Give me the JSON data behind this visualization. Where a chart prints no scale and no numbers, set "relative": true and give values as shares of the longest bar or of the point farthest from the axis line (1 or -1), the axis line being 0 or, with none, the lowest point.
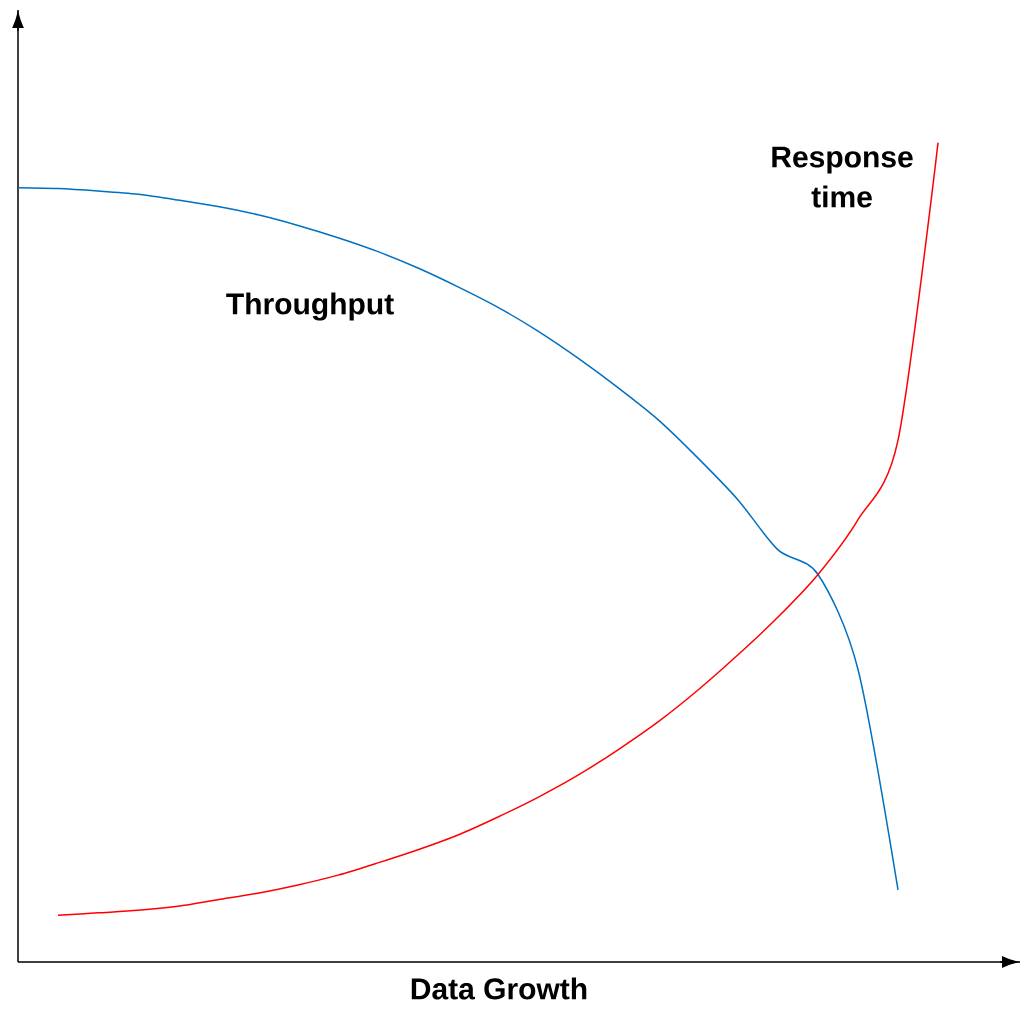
{
  "chart_data": {
    "type": "line",
    "relative": true,
    "xlabel": "Data Growth",
    "marker": "none",
    "categories": [
      null,
      null,
      null,
      null,
      null,
      null,
      null,
      null,
      null,
      null,
      null,
      null,
      null,
      null,
      null,
      null,
      null,
      null,
      null,
      null,
      null,
      null,
      null,
      null,
      null
    ],
    "series": [
      {
        "name": "Throughput",
        "color": "#0070c0",
        "values": [
          0.945,
          0.944,
          0.941,
          0.937,
          0.93,
          0.922,
          0.912,
          0.899,
          0.884,
          0.867,
          0.847,
          0.824,
          0.799,
          0.77,
          0.737,
          0.701,
          0.662,
          0.615,
          0.564,
          0.503,
          0.473,
          0.357,
          0.088,
          null,
          null
        ]
      },
      {
        "name": "Response time",
        "color": "#ff0000",
        "values": [
          null,
          0.057,
          0.06,
          0.063,
          0.068,
          0.076,
          0.084,
          0.094,
          0.106,
          0.121,
          0.137,
          0.155,
          0.177,
          0.201,
          0.228,
          0.259,
          0.293,
          0.332,
          0.375,
          0.421,
          0.473,
          0.54,
          0.637,
          1.0,
          null
        ]
      }
    ]
  }
}
